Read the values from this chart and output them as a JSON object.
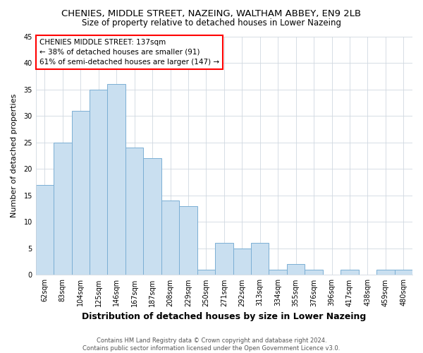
{
  "title": "CHENIES, MIDDLE STREET, NAZEING, WALTHAM ABBEY, EN9 2LB",
  "subtitle": "Size of property relative to detached houses in Lower Nazeing",
  "xlabel": "Distribution of detached houses by size in Lower Nazeing",
  "ylabel": "Number of detached properties",
  "categories": [
    "62sqm",
    "83sqm",
    "104sqm",
    "125sqm",
    "146sqm",
    "167sqm",
    "187sqm",
    "208sqm",
    "229sqm",
    "250sqm",
    "271sqm",
    "292sqm",
    "313sqm",
    "334sqm",
    "355sqm",
    "376sqm",
    "396sqm",
    "417sqm",
    "438sqm",
    "459sqm",
    "480sqm"
  ],
  "values": [
    17,
    25,
    31,
    35,
    36,
    24,
    22,
    14,
    13,
    1,
    6,
    5,
    6,
    1,
    2,
    1,
    0,
    1,
    0,
    1,
    1
  ],
  "bar_color": "#c9dff0",
  "bar_edge_color": "#7bafd4",
  "highlight_bar_index": 4,
  "annotation_text": "CHENIES MIDDLE STREET: 137sqm\n← 38% of detached houses are smaller (91)\n61% of semi-detached houses are larger (147) →",
  "ylim": [
    0,
    45
  ],
  "yticks": [
    0,
    5,
    10,
    15,
    20,
    25,
    30,
    35,
    40,
    45
  ],
  "background_color": "#ffffff",
  "grid_color": "#d0d8e0",
  "footer": "Contains HM Land Registry data © Crown copyright and database right 2024.\nContains public sector information licensed under the Open Government Licence v3.0.",
  "title_fontsize": 9.5,
  "subtitle_fontsize": 8.5,
  "xlabel_fontsize": 9,
  "ylabel_fontsize": 8,
  "tick_fontsize": 7,
  "annotation_fontsize": 7.5,
  "footer_fontsize": 6
}
